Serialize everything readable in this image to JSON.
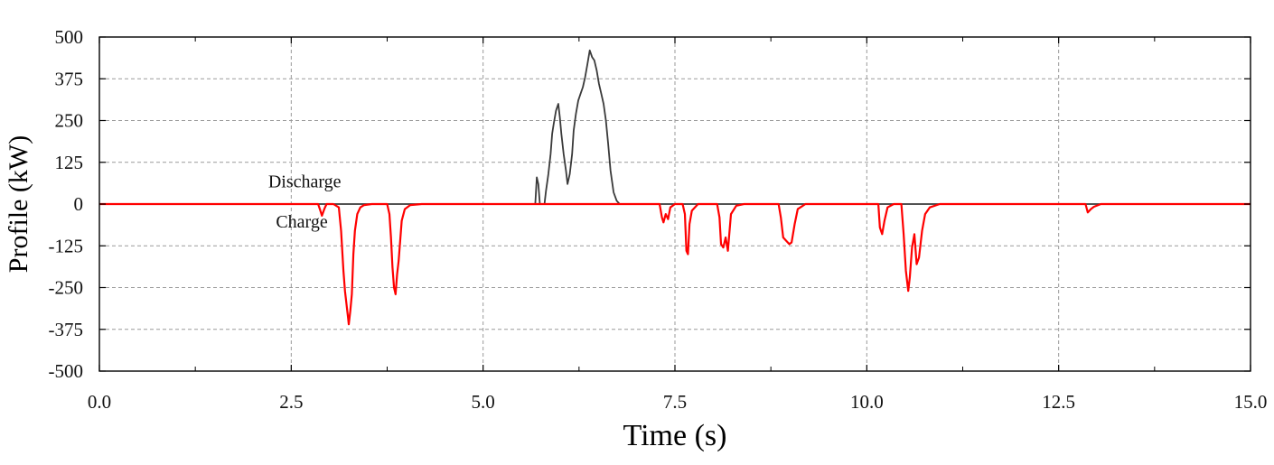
{
  "chart_data": {
    "type": "line",
    "xlabel": "Time (s)",
    "ylabel": "Profile (kW)",
    "xlim": [
      0,
      15
    ],
    "ylim": [
      -500,
      500
    ],
    "grid": true,
    "x_ticks": [
      0,
      2.5,
      5,
      7.5,
      10,
      12.5,
      15
    ],
    "x_tick_labels": [
      "0.0",
      "2.5",
      "5.0",
      "7.5",
      "10.0",
      "12.5",
      "15.0"
    ],
    "x_minor_ticks": [
      1.25,
      3.75,
      6.25,
      8.75,
      11.25,
      13.75
    ],
    "y_ticks": [
      500,
      375,
      250,
      125,
      0,
      -125,
      -250,
      -375,
      -500
    ],
    "y_tick_labels": [
      "500",
      "375",
      "250",
      "125",
      "0",
      "-125",
      "-250",
      "-375",
      "-500"
    ],
    "annotations": [
      {
        "text": "Discharge",
        "x": 2.2,
        "y": 50
      },
      {
        "text": "Charge",
        "x": 2.3,
        "y": -70
      }
    ],
    "colors": {
      "discharge": "#3a3a3a",
      "charge": "#ff0000",
      "grid": "#9a9a9a"
    },
    "series": [
      {
        "id": "discharge",
        "x": [
          0,
          5.68,
          5.7,
          5.72,
          5.74,
          5.8,
          5.82,
          5.85,
          5.88,
          5.9,
          5.92,
          5.95,
          5.98,
          6.0,
          6.02,
          6.05,
          6.08,
          6.1,
          6.13,
          6.16,
          6.18,
          6.21,
          6.24,
          6.27,
          6.3,
          6.33,
          6.36,
          6.39,
          6.42,
          6.45,
          6.48,
          6.51,
          6.54,
          6.57,
          6.6,
          6.63,
          6.66,
          6.7,
          6.74,
          6.78,
          15
        ],
        "y": [
          0,
          0,
          80,
          60,
          0,
          0,
          40,
          90,
          150,
          210,
          240,
          280,
          300,
          260,
          210,
          150,
          100,
          60,
          90,
          150,
          220,
          270,
          310,
          330,
          350,
          380,
          420,
          460,
          440,
          430,
          400,
          360,
          330,
          300,
          250,
          180,
          100,
          35,
          10,
          0,
          0
        ]
      },
      {
        "id": "charge",
        "x": [
          0,
          2.85,
          2.88,
          2.9,
          2.93,
          2.96,
          3.0,
          3.05,
          3.12,
          3.15,
          3.18,
          3.2,
          3.22,
          3.24,
          3.25,
          3.27,
          3.29,
          3.31,
          3.33,
          3.36,
          3.4,
          3.45,
          3.55,
          3.75,
          3.78,
          3.8,
          3.82,
          3.84,
          3.86,
          3.88,
          3.9,
          3.92,
          3.94,
          3.98,
          4.05,
          4.2,
          7.3,
          7.33,
          7.35,
          7.38,
          7.41,
          7.44,
          7.5,
          7.6,
          7.63,
          7.65,
          7.67,
          7.69,
          7.72,
          7.8,
          8.05,
          8.08,
          8.1,
          8.13,
          8.16,
          8.19,
          8.23,
          8.3,
          8.4,
          8.85,
          8.88,
          8.91,
          8.95,
          8.99,
          9.02,
          9.06,
          9.1,
          9.2,
          10.15,
          10.17,
          10.2,
          10.23,
          10.27,
          10.35,
          10.45,
          10.48,
          10.51,
          10.54,
          10.56,
          10.59,
          10.62,
          10.65,
          10.68,
          10.72,
          10.76,
          10.82,
          10.95,
          12.85,
          12.88,
          12.92,
          12.96,
          13.05,
          15
        ],
        "y": [
          0,
          0,
          -20,
          -35,
          -15,
          0,
          0,
          0,
          -10,
          -80,
          -200,
          -260,
          -300,
          -340,
          -360,
          -320,
          -270,
          -150,
          -80,
          -30,
          -10,
          -3,
          0,
          0,
          -30,
          -100,
          -190,
          -250,
          -270,
          -210,
          -170,
          -110,
          -50,
          -15,
          -3,
          0,
          0,
          -40,
          -55,
          -30,
          -45,
          -10,
          0,
          0,
          -30,
          -140,
          -150,
          -60,
          -20,
          0,
          0,
          -40,
          -120,
          -130,
          -100,
          -140,
          -30,
          -5,
          0,
          0,
          -40,
          -100,
          -110,
          -120,
          -115,
          -60,
          -15,
          0,
          0,
          -70,
          -90,
          -50,
          -10,
          0,
          0,
          -90,
          -200,
          -260,
          -220,
          -130,
          -90,
          -180,
          -160,
          -80,
          -30,
          -10,
          0,
          0,
          -25,
          -15,
          -8,
          0,
          0
        ]
      }
    ]
  }
}
